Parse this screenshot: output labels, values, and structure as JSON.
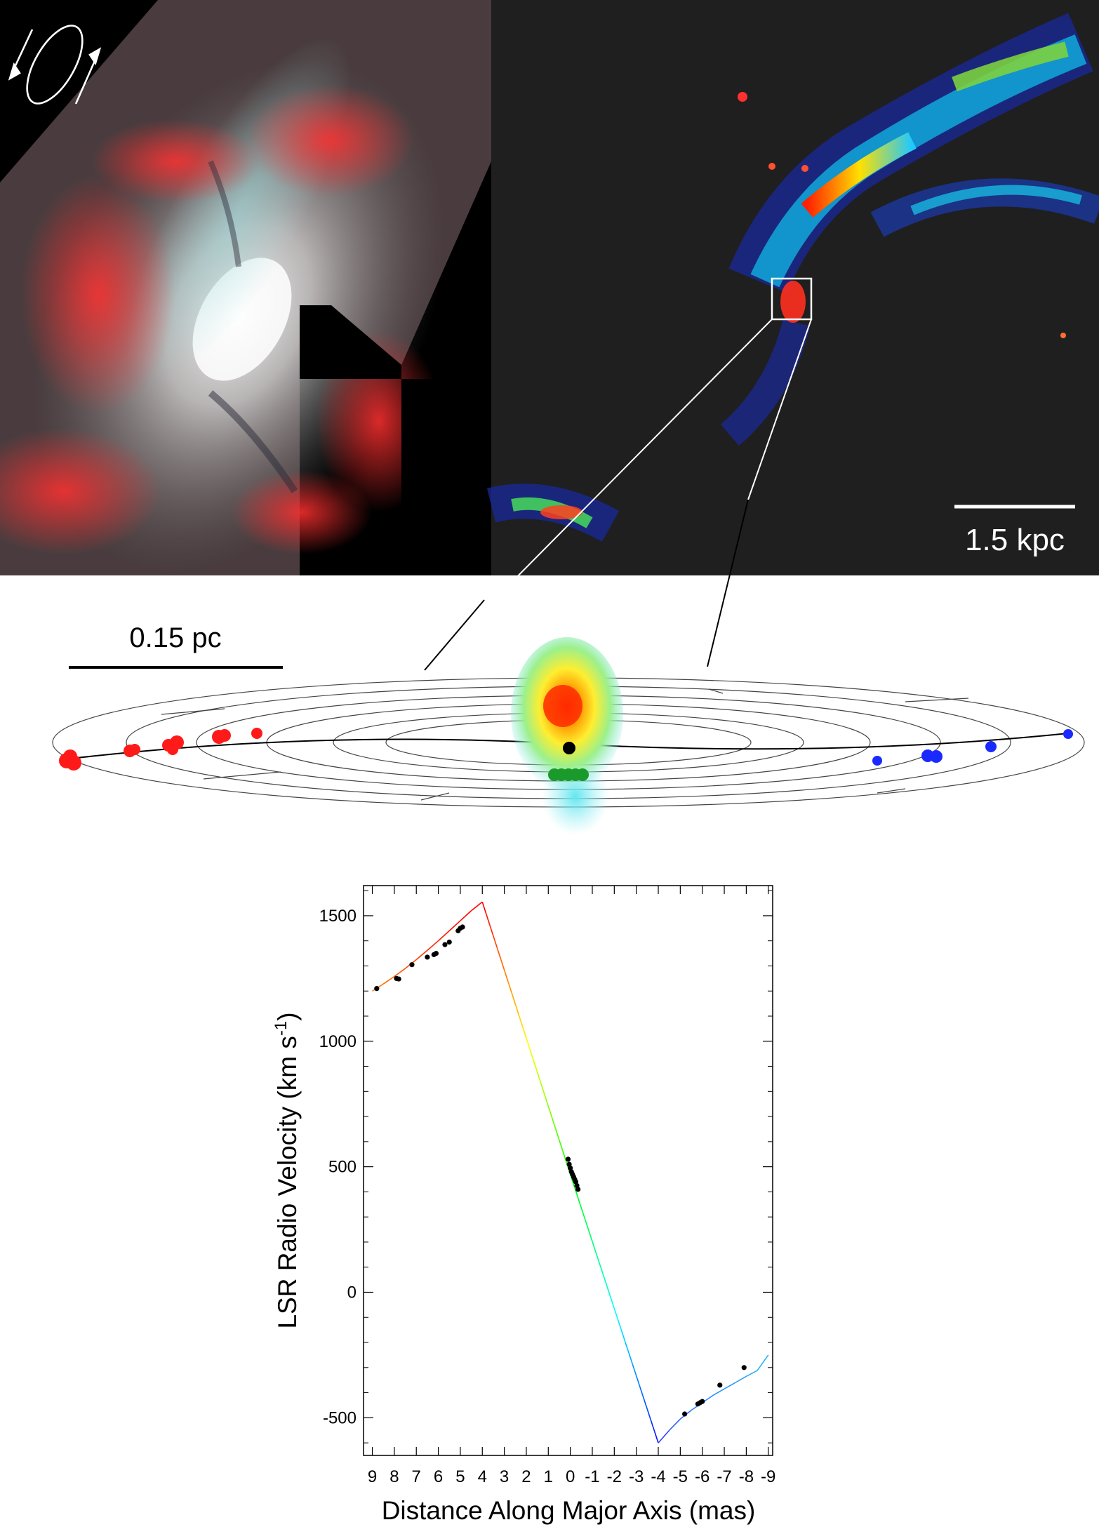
{
  "scalebars": {
    "kpc_label": "1.5 kpc",
    "pc_label": "0.15 pc"
  },
  "colors": {
    "redshifted": "#ff1a1a",
    "systemic": "#1a9a2a",
    "blueshifted": "#1a2aff",
    "black_hole": "#000000",
    "halpha": "#e0202a",
    "starlight": "#cfe6e6"
  },
  "icons": {
    "rotation": "rotation-arrows-icon"
  },
  "chart_data": {
    "type": "line",
    "title": "",
    "xlabel": "Distance Along Major Axis (mas)",
    "ylabel_main": "LSR Radio Velocity (km s",
    "ylabel_sup": "-1",
    "ylabel_end": ")",
    "xlim": [
      9,
      -9
    ],
    "ylim": [
      -650,
      1620
    ],
    "x_ticks": [
      9,
      8,
      7,
      6,
      5,
      4,
      3,
      2,
      1,
      0,
      -1,
      -2,
      -3,
      -4,
      -5,
      -6,
      -7,
      -8,
      -9
    ],
    "x_tick_labels": [
      "9",
      "8",
      "7",
      "6",
      "5",
      "4",
      "3",
      "2",
      "1",
      "0",
      "-1",
      "-2",
      "-3",
      "-4",
      "-5",
      "-6",
      "-7",
      "-8",
      "-9"
    ],
    "y_ticks": [
      -500,
      0,
      500,
      1000,
      1500
    ],
    "y_tick_labels": [
      "-500",
      "0",
      "500",
      "1000",
      "1500"
    ],
    "model_curve": {
      "x": [
        9,
        8.5,
        8,
        7.5,
        7,
        6.5,
        6,
        5.5,
        5,
        4.5,
        4,
        0,
        -4,
        -4.5,
        -5,
        -5.5,
        -6,
        -6.5,
        -7,
        -7.5,
        -8,
        -8.5,
        -9
      ],
      "y": [
        1200,
        1228,
        1258,
        1290,
        1325,
        1362,
        1400,
        1440,
        1480,
        1520,
        1555,
        470,
        -600,
        -550,
        -505,
        -470,
        -440,
        -410,
        -385,
        -360,
        -335,
        -312,
        -250
      ]
    },
    "masers_red": {
      "x": [
        8.8,
        7.9,
        7.8,
        7.2,
        6.5,
        6.2,
        6.1,
        5.7,
        5.5,
        5.1,
        4.9,
        5.0
      ],
      "y": [
        1210,
        1250,
        1248,
        1305,
        1335,
        1345,
        1350,
        1385,
        1395,
        1440,
        1455,
        1450
      ]
    },
    "masers_systemic": {
      "x": [
        0.1,
        0.05,
        0.0,
        -0.05,
        -0.1,
        -0.15,
        -0.2,
        -0.25,
        -0.3,
        -0.35
      ],
      "y": [
        530,
        510,
        495,
        480,
        470,
        460,
        450,
        440,
        425,
        410
      ]
    },
    "masers_blue": {
      "x": [
        -5.2,
        -5.8,
        -5.9,
        -6.0,
        -6.8,
        -7.9
      ],
      "y": [
        -485,
        -445,
        -440,
        -435,
        -370,
        -300
      ]
    }
  }
}
